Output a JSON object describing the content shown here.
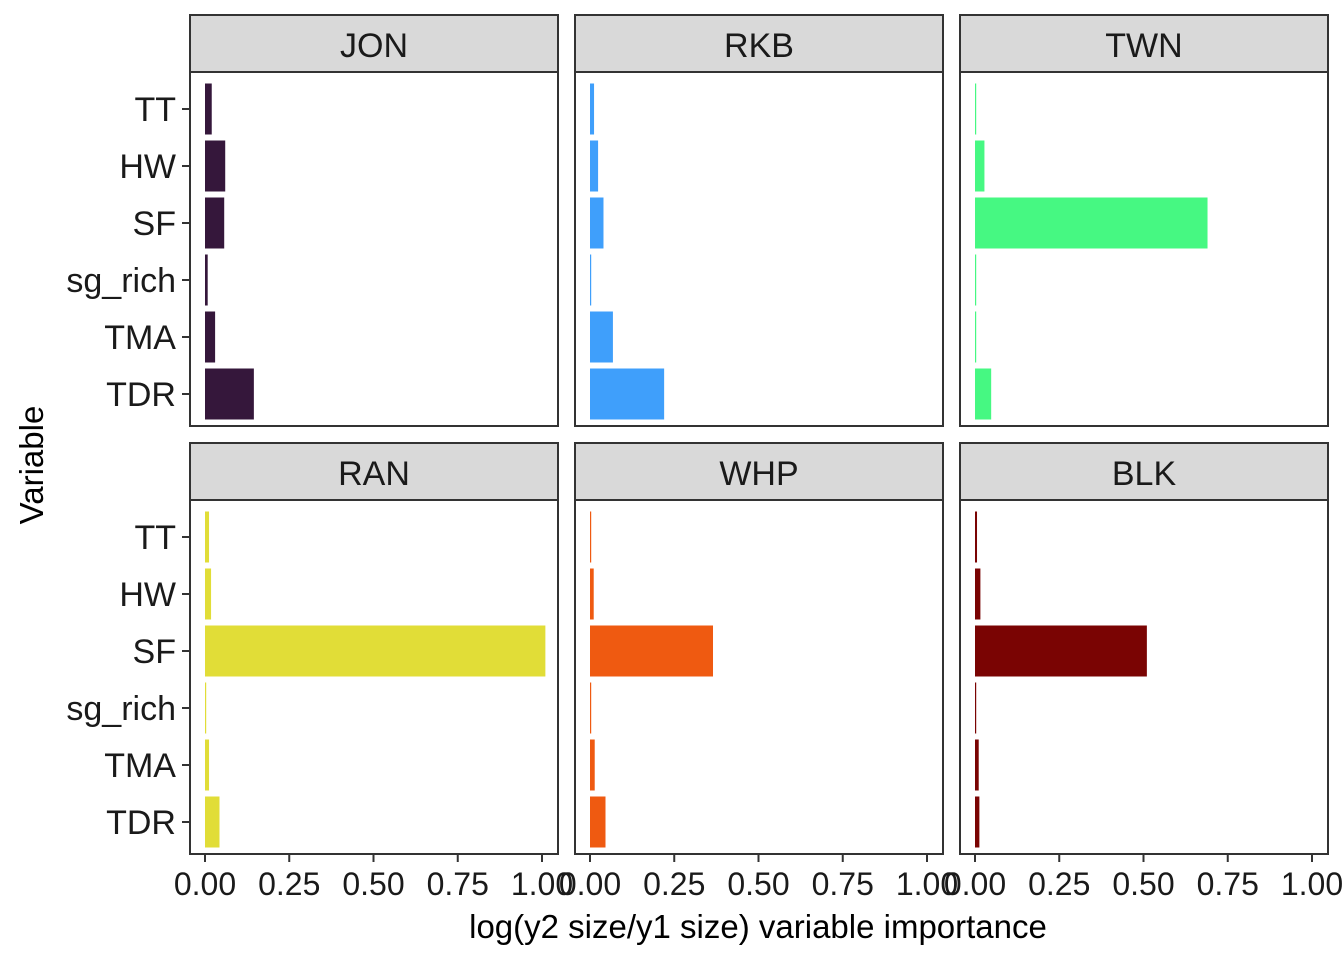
{
  "chart_data": {
    "type": "bar",
    "orientation": "horizontal",
    "faceted": true,
    "xlabel": "log(y2 size/y1 size) variable importance",
    "ylabel": "Variable",
    "xlim": [
      0,
      1.05
    ],
    "x_ticks": [
      "0.00",
      "0.25",
      "0.50",
      "0.75",
      "1.00"
    ],
    "categories": [
      "TT",
      "HW",
      "SF",
      "sg_rich",
      "TMA",
      "TDR"
    ],
    "grid": false,
    "legend": "none",
    "panels": [
      {
        "name": "JON",
        "color": "#35173b",
        "values": [
          0.02,
          0.06,
          0.057,
          0.008,
          0.03,
          0.145
        ]
      },
      {
        "name": "RKB",
        "color": "#3f9ffb",
        "values": [
          0.012,
          0.024,
          0.04,
          0.003,
          0.068,
          0.22
        ]
      },
      {
        "name": "TWN",
        "color": "#46f882",
        "values": [
          0.003,
          0.028,
          0.69,
          0.003,
          0.003,
          0.048
        ]
      },
      {
        "name": "RAN",
        "color": "#e1dd37",
        "values": [
          0.012,
          0.018,
          1.01,
          0.003,
          0.012,
          0.043
        ]
      },
      {
        "name": "WHP",
        "color": "#ef5a11",
        "values": [
          0.003,
          0.011,
          0.365,
          0.003,
          0.014,
          0.046
        ]
      },
      {
        "name": "BLK",
        "color": "#7a0403",
        "values": [
          0.006,
          0.016,
          0.51,
          0.003,
          0.011,
          0.013
        ]
      }
    ]
  }
}
